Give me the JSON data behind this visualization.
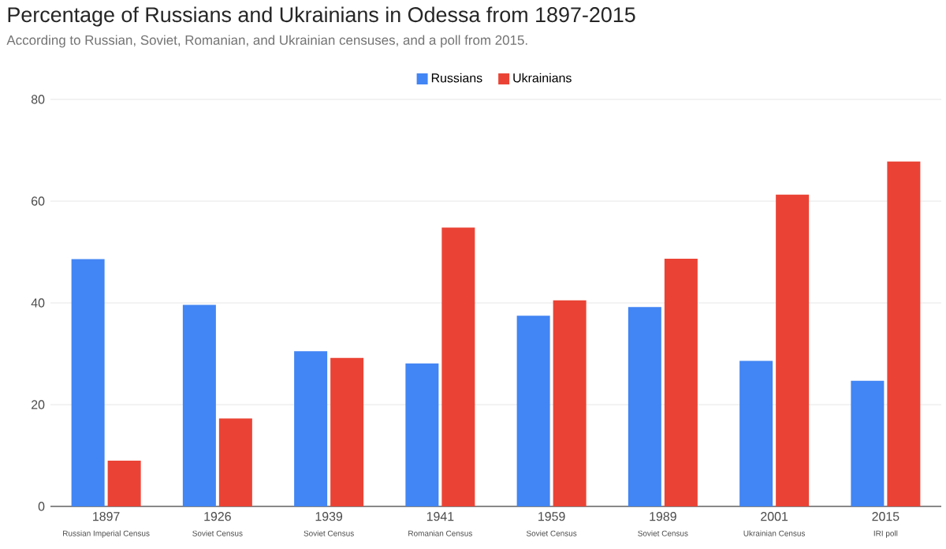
{
  "chart_data": {
    "type": "bar",
    "title": "Percentage of Russians and Ukrainians in Odessa from 1897-2015",
    "subtitle": "According to Russian, Soviet, Romanian, and Ukrainian censuses, and a poll from 2015.",
    "categories": [
      "1897",
      "1926",
      "1939",
      "1941",
      "1959",
      "1989",
      "2001",
      "2015"
    ],
    "annotations": [
      "Russian Imperial Census",
      "Soviet Census",
      "Soviet Census",
      "Romanian Census",
      "Soviet Census",
      "Soviet Census",
      "Ukrainian Census",
      "IRI poll"
    ],
    "series": [
      {
        "name": "Russians",
        "color": "#4285f4",
        "values": [
          48.6,
          39.6,
          30.5,
          28.1,
          37.5,
          39.2,
          28.6,
          24.7
        ]
      },
      {
        "name": "Ukrainians",
        "color": "#ea4335",
        "values": [
          9.0,
          17.3,
          29.2,
          54.8,
          40.5,
          48.7,
          61.3,
          67.8
        ]
      }
    ],
    "ylim": [
      0,
      80
    ],
    "yticks": [
      0,
      20,
      40,
      60,
      80
    ],
    "grid": "y",
    "legend": "top"
  }
}
